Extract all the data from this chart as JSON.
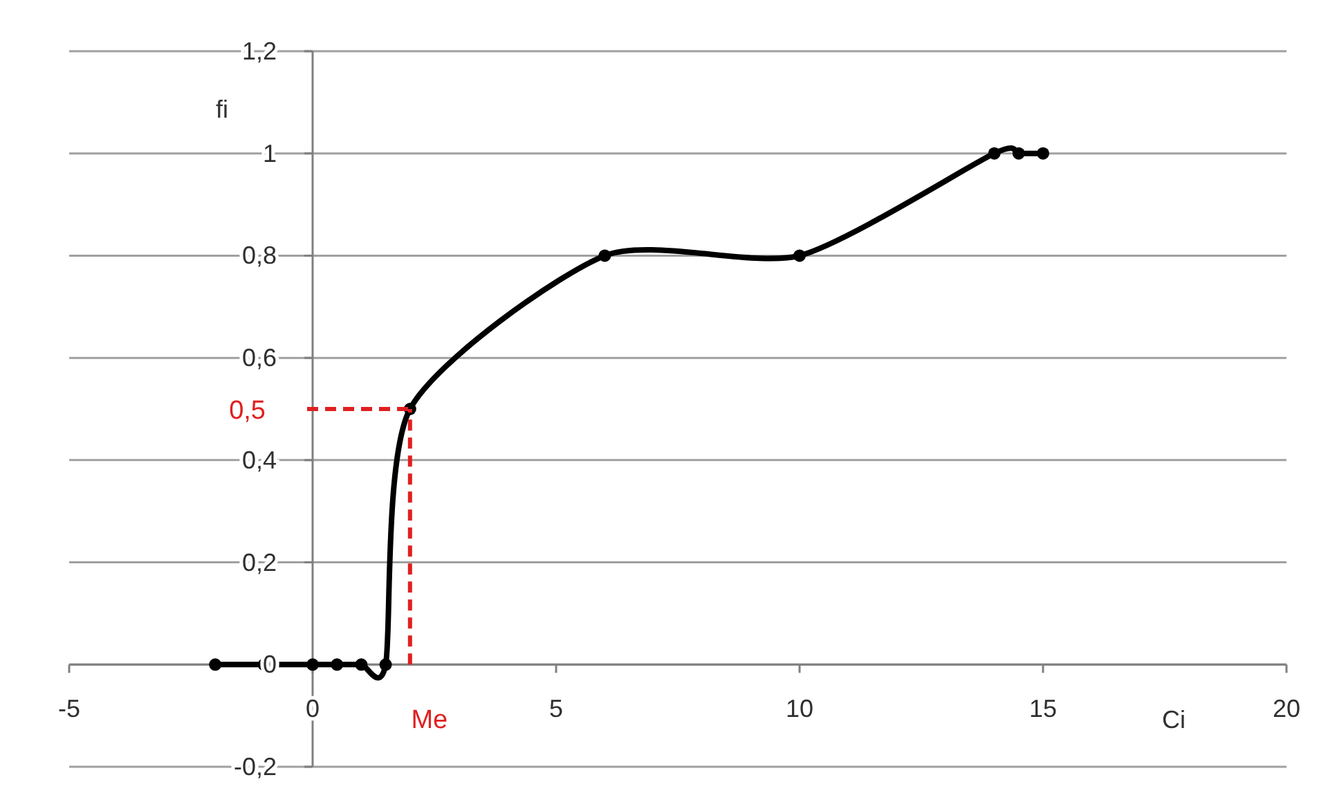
{
  "chart_data": {
    "type": "line",
    "xlabel": "Ci",
    "ylabel": "fi",
    "xlim": [
      -5,
      20
    ],
    "xticks": [
      -5,
      0,
      5,
      10,
      15,
      20
    ],
    "ylim": [
      -0.2,
      1.2
    ],
    "yticks": [
      {
        "value": -0.2,
        "label": "-0,2"
      },
      0,
      {
        "value": 0.2,
        "label": "0,2"
      },
      {
        "value": 0.4,
        "label": "0,4"
      },
      {
        "value": 0.6,
        "label": "0,6"
      },
      {
        "value": 0.8,
        "label": "0,8"
      },
      1,
      {
        "value": 1.2,
        "label": "1,2"
      }
    ],
    "grid": "y",
    "marker": "circle",
    "line_style": "solid",
    "series": [
      {
        "color": "#000000",
        "x": [
          -2,
          -1,
          0,
          0.5,
          1,
          1.5,
          2,
          6,
          10,
          14,
          14.5,
          15
        ],
        "values": [
          0,
          0,
          0,
          0,
          0,
          0,
          0.5,
          0.8,
          0.8,
          1,
          1,
          1
        ]
      }
    ],
    "ref_lines": [
      {
        "axis": "x",
        "value": 2,
        "label": "Me",
        "color": "#e02020",
        "line_style": "dashed"
      },
      {
        "axis": "y",
        "value": 0.5,
        "label": "0,5",
        "color": "#e02020",
        "line_style": "dashed"
      }
    ]
  }
}
